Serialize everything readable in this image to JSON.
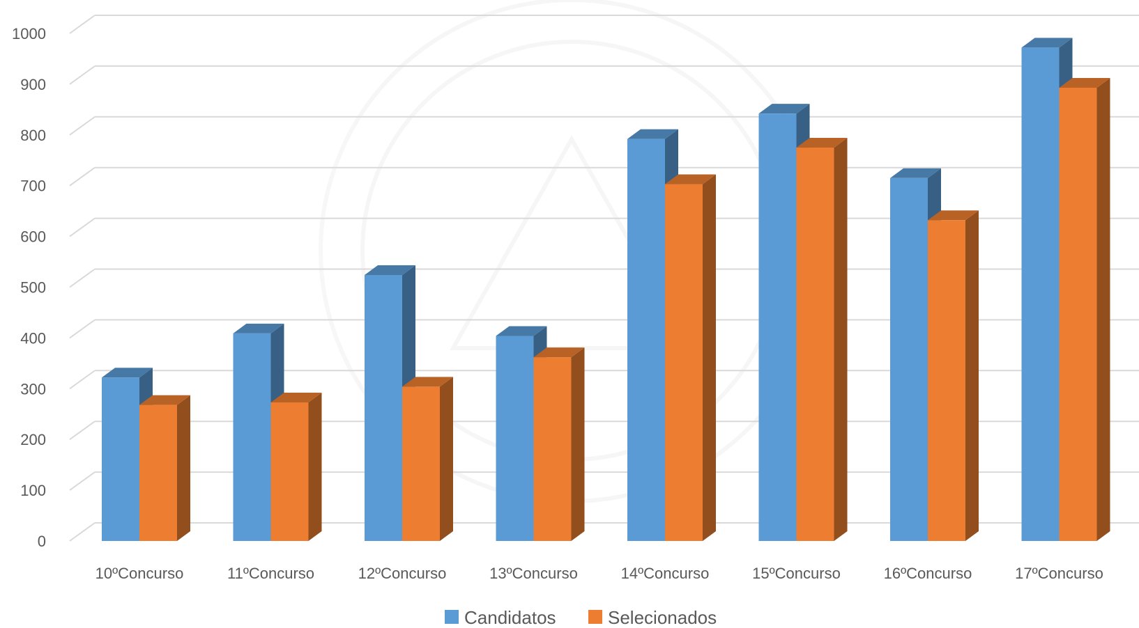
{
  "chart_data": {
    "type": "bar",
    "style": "3d-clustered-column",
    "categories": [
      "10ºConcurso",
      "11ºConcurso",
      "12ºConcurso",
      "13ºConcurso",
      "14ºConcurso",
      "15ºConcurso",
      "16ºConcurso",
      "17ºConcurso"
    ],
    "series": [
      {
        "name": "Candidatos",
        "values": [
          322,
          409,
          524,
          404,
          792,
          842,
          715,
          972
        ],
        "color": "#5B9BD5"
      },
      {
        "name": "Selecionados",
        "values": [
          268,
          273,
          304,
          362,
          703,
          775,
          632,
          893
        ],
        "color": "#ED7D31"
      }
    ],
    "yticks": [
      "0",
      "100",
      "200",
      "300",
      "400",
      "500",
      "600",
      "700",
      "800",
      "900",
      "1000"
    ],
    "ylim": [
      0,
      1000
    ],
    "grid": true,
    "legend": "bottom",
    "watermark": "emblem"
  }
}
